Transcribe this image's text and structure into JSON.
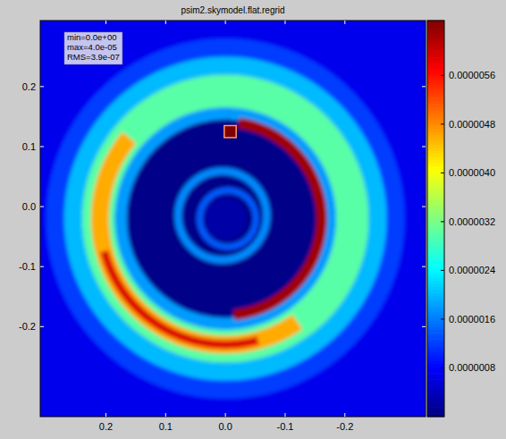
{
  "chart_data": {
    "type": "heatmap",
    "title": "psim2.skymodel.flat.regrid",
    "annotations": [
      "min=0.0e+00",
      "max=4.0e-05",
      "RMS=3.9e-07"
    ],
    "xlim": [
      0.31,
      -0.335
    ],
    "ylim": [
      -0.35,
      0.31
    ],
    "xticks": [
      0.2,
      0.1,
      {
        "value": 0,
        "label": "0.0"
      },
      -0.1,
      -0.2
    ],
    "yticks": [
      0.2,
      0.1,
      {
        "value": 0,
        "label": "0.0"
      },
      -0.1,
      -0.2
    ],
    "background": 7e-07,
    "components": [
      {
        "shape": "annulus",
        "center": [
          0,
          -0.02
        ],
        "radii": [
          0.27,
          0.3
        ],
        "value": 1.2e-06
      },
      {
        "shape": "annulus",
        "center": [
          0,
          -0.02
        ],
        "radii": [
          0.24,
          0.27
        ],
        "value": 2e-06
      },
      {
        "shape": "annulus",
        "center": [
          0,
          -0.02
        ],
        "radii": [
          0.185,
          0.24
        ],
        "value": 3e-06
      },
      {
        "shape": "annulus",
        "center": [
          0,
          -0.02
        ],
        "radii": [
          0.165,
          0.185
        ],
        "value": 1.8e-06
      },
      {
        "shape": "annulus",
        "center": [
          0,
          -0.02
        ],
        "radii": [
          0,
          0.165
        ],
        "value": 6e-08
      },
      {
        "shape": "arc",
        "center": [
          0,
          -0.02
        ],
        "radii": [
          0.195,
          0.225
        ],
        "angles": [
          235,
          400
        ],
        "value": 4.6e-06
      },
      {
        "shape": "arc",
        "center": [
          0,
          -0.02
        ],
        "radii": [
          0.203,
          0.217
        ],
        "angles": [
          255,
          345
        ],
        "value": 5.9e-06
      },
      {
        "shape": "arc",
        "center": [
          0,
          -0.02
        ],
        "radii": [
          0.152,
          0.17
        ],
        "angles": [
          98,
          265
        ],
        "value": 6.3e-06
      },
      {
        "shape": "annulus",
        "center": [
          0.005,
          -0.015
        ],
        "radii": [
          0.068,
          0.08
        ],
        "value": 1.7e-06
      },
      {
        "shape": "annulus",
        "center": [
          -0.004,
          -0.02
        ],
        "radii": [
          0.042,
          0.052
        ],
        "value": 1.4e-06
      },
      {
        "shape": "annulus",
        "center": [
          0,
          -0.02
        ],
        "radii": [
          0,
          0.035
        ],
        "value": 2.5e-07
      },
      {
        "shape": "square",
        "center": [
          -0.008,
          0.125
        ],
        "size": 0.02,
        "value": 4e-05
      }
    ],
    "colorbar": {
      "range": [
        0,
        6.5e-06
      ],
      "ticks": [
        {
          "value": 8e-07,
          "label": "0.0000008"
        },
        {
          "value": 1.6e-06,
          "label": "0.0000016"
        },
        {
          "value": 2.4e-06,
          "label": "0.0000024"
        },
        {
          "value": 3.2e-06,
          "label": "0.0000032"
        },
        {
          "value": 4e-06,
          "label": "0.0000040"
        },
        {
          "value": 4.8e-06,
          "label": "0.0000048"
        },
        {
          "value": 5.6e-06,
          "label": "0.0000056"
        }
      ]
    }
  }
}
